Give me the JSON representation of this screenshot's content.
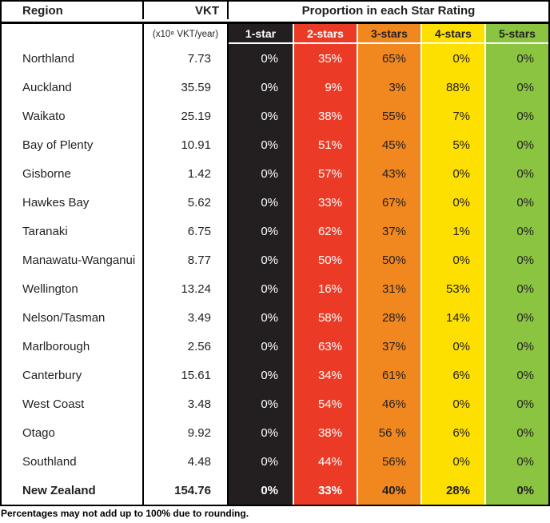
{
  "table": {
    "region_header": "Region",
    "vkt_header": "VKT",
    "vkt_unit": "(x10⁸ VKT/year)",
    "proportion_header": "Proportion in each Star Rating",
    "star_columns": [
      {
        "label": "1-star",
        "bg": "#231f20",
        "text": "#ffffff"
      },
      {
        "label": "2-stars",
        "bg": "#eb3b26",
        "text": "#ffffff"
      },
      {
        "label": "3-stars",
        "bg": "#f1871f",
        "text": "#231f20"
      },
      {
        "label": "4-stars",
        "bg": "#fde000",
        "text": "#231f20"
      },
      {
        "label": "5-stars",
        "bg": "#8ac441",
        "text": "#231f20"
      }
    ],
    "rows": [
      {
        "region": "Northland",
        "vkt": "7.73",
        "ratings": [
          "0%",
          "35%",
          "65%",
          "0%",
          "0%"
        ],
        "bold": false
      },
      {
        "region": "Auckland",
        "vkt": "35.59",
        "ratings": [
          "0%",
          "9%",
          "3%",
          "88%",
          "0%"
        ],
        "bold": false
      },
      {
        "region": "Waikato",
        "vkt": "25.19",
        "ratings": [
          "0%",
          "38%",
          "55%",
          "7%",
          "0%"
        ],
        "bold": false
      },
      {
        "region": "Bay of Plenty",
        "vkt": "10.91",
        "ratings": [
          "0%",
          "51%",
          "45%",
          "5%",
          "0%"
        ],
        "bold": false
      },
      {
        "region": "Gisborne",
        "vkt": "1.42",
        "ratings": [
          "0%",
          "57%",
          "43%",
          "0%",
          "0%"
        ],
        "bold": false
      },
      {
        "region": "Hawkes Bay",
        "vkt": "5.62",
        "ratings": [
          "0%",
          "33%",
          "67%",
          "0%",
          "0%"
        ],
        "bold": false
      },
      {
        "region": "Taranaki",
        "vkt": "6.75",
        "ratings": [
          "0%",
          "62%",
          "37%",
          "1%",
          "0%"
        ],
        "bold": false
      },
      {
        "region": "Manawatu-Wanganui",
        "vkt": "8.77",
        "ratings": [
          "0%",
          "50%",
          "50%",
          "0%",
          "0%"
        ],
        "bold": false
      },
      {
        "region": "Wellington",
        "vkt": "13.24",
        "ratings": [
          "0%",
          "16%",
          "31%",
          "53%",
          "0%"
        ],
        "bold": false
      },
      {
        "region": "Nelson/Tasman",
        "vkt": "3.49",
        "ratings": [
          "0%",
          "58%",
          "28%",
          "14%",
          "0%"
        ],
        "bold": false
      },
      {
        "region": "Marlborough",
        "vkt": "2.56",
        "ratings": [
          "0%",
          "63%",
          "37%",
          "0%",
          "0%"
        ],
        "bold": false
      },
      {
        "region": "Canterbury",
        "vkt": "15.61",
        "ratings": [
          "0%",
          "34%",
          "61%",
          "6%",
          "0%"
        ],
        "bold": false
      },
      {
        "region": "West Coast",
        "vkt": "3.48",
        "ratings": [
          "0%",
          "54%",
          "46%",
          "0%",
          "0%"
        ],
        "bold": false
      },
      {
        "region": "Otago",
        "vkt": "9.92",
        "ratings": [
          "0%",
          "38%",
          "56 %",
          "6%",
          "0%"
        ],
        "bold": false
      },
      {
        "region": "Southland",
        "vkt": "4.48",
        "ratings": [
          "0%",
          "44%",
          "56%",
          "0%",
          "0%"
        ],
        "bold": false
      },
      {
        "region": "New Zealand",
        "vkt": "154.76",
        "ratings": [
          "0%",
          "33%",
          "40%",
          "28%",
          "0%"
        ],
        "bold": true
      }
    ],
    "footnote": "Percentages may not add up to 100% due to rounding."
  },
  "chart_data": {
    "type": "table",
    "title": "Proportion in each Star Rating",
    "columns": [
      "Region",
      "VKT (x10⁸ VKT/year)",
      "1-star",
      "2-stars",
      "3-stars",
      "4-stars",
      "5-stars"
    ],
    "rows": [
      [
        "Northland",
        7.73,
        "0%",
        "35%",
        "65%",
        "0%",
        "0%"
      ],
      [
        "Auckland",
        35.59,
        "0%",
        "9%",
        "3%",
        "88%",
        "0%"
      ],
      [
        "Waikato",
        25.19,
        "0%",
        "38%",
        "55%",
        "7%",
        "0%"
      ],
      [
        "Bay of Plenty",
        10.91,
        "0%",
        "51%",
        "45%",
        "5%",
        "0%"
      ],
      [
        "Gisborne",
        1.42,
        "0%",
        "57%",
        "43%",
        "0%",
        "0%"
      ],
      [
        "Hawkes Bay",
        5.62,
        "0%",
        "33%",
        "67%",
        "0%",
        "0%"
      ],
      [
        "Taranaki",
        6.75,
        "0%",
        "62%",
        "37%",
        "1%",
        "0%"
      ],
      [
        "Manawatu-Wanganui",
        8.77,
        "0%",
        "50%",
        "50%",
        "0%",
        "0%"
      ],
      [
        "Wellington",
        13.24,
        "0%",
        "16%",
        "31%",
        "53%",
        "0%"
      ],
      [
        "Nelson/Tasman",
        3.49,
        "0%",
        "58%",
        "28%",
        "14%",
        "0%"
      ],
      [
        "Marlborough",
        2.56,
        "0%",
        "63%",
        "37%",
        "0%",
        "0%"
      ],
      [
        "Canterbury",
        15.61,
        "0%",
        "34%",
        "61%",
        "6%",
        "0%"
      ],
      [
        "West Coast",
        3.48,
        "0%",
        "54%",
        "46%",
        "0%",
        "0%"
      ],
      [
        "Otago",
        9.92,
        "0%",
        "38%",
        "56 %",
        "6%",
        "0%"
      ],
      [
        "Southland",
        4.48,
        "0%",
        "44%",
        "56%",
        "0%",
        "0%"
      ],
      [
        "New Zealand",
        154.76,
        "0%",
        "33%",
        "40%",
        "28%",
        "0%"
      ]
    ],
    "footnote": "Percentages may not add up to 100% due to rounding.",
    "colors": {
      "1-star": "#231f20",
      "2-stars": "#eb3b26",
      "3-stars": "#f1871f",
      "4-stars": "#fde000",
      "5-stars": "#8ac441"
    }
  }
}
